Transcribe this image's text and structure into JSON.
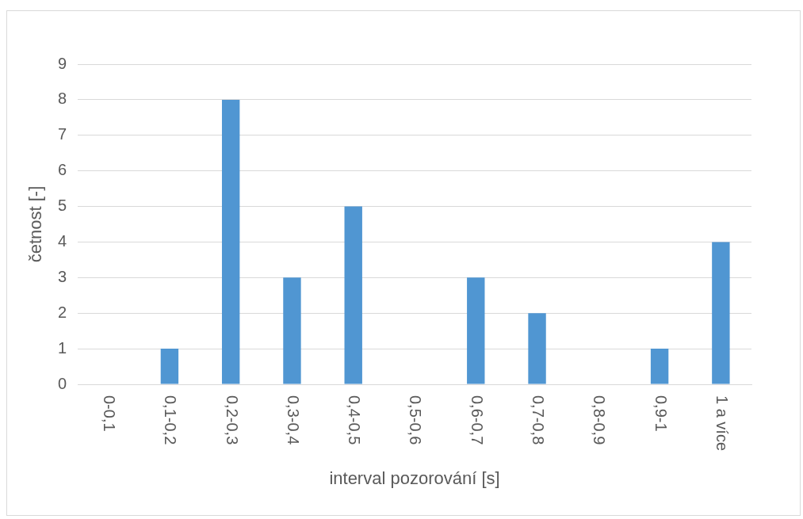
{
  "chart_data": {
    "type": "bar",
    "xlabel": "interval pozorování [s]",
    "ylabel": "četnost [-]",
    "categories": [
      "0-0,1",
      "0,1-0,2",
      "0,2-0,3",
      "0,3-0,4",
      "0,4-0,5",
      "0,5-0,6",
      "0,6-0,7",
      "0,7-0,8",
      "0,8-0,9",
      "0,9-1",
      "1 a více"
    ],
    "values": [
      0,
      1,
      8,
      3,
      5,
      0,
      3,
      2,
      0,
      1,
      4
    ],
    "color": "#5096d2",
    "ylim": [
      0,
      9
    ],
    "yticks": [
      0,
      1,
      2,
      3,
      4,
      5,
      6,
      7,
      8,
      9
    ],
    "grid": "y"
  }
}
